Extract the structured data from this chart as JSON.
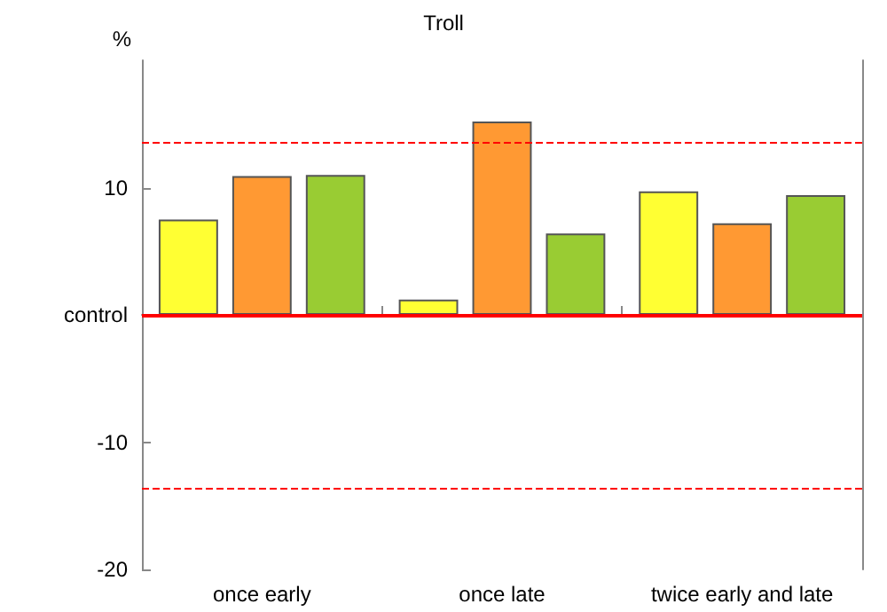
{
  "chart_data": {
    "type": "bar",
    "title": "Troll",
    "ylabel": "%",
    "categories": [
      "once early",
      "once late",
      "twice early and late"
    ],
    "series": [
      {
        "color": "#ffff33",
        "values": [
          7.5,
          1.2,
          9.7
        ]
      },
      {
        "color": "#ff9933",
        "values": [
          10.9,
          15.2,
          7.2
        ]
      },
      {
        "color": "#99cc33",
        "values": [
          11.0,
          6.4,
          9.4
        ]
      }
    ],
    "ylim": [
      -20,
      20
    ],
    "yticks": [
      -20,
      -10,
      {
        "value": 0,
        "label": "control"
      },
      10
    ],
    "ref_lines": [
      {
        "axis": "y",
        "value": 0,
        "color": "#ff0000",
        "line_style": "solid"
      },
      {
        "axis": "y",
        "value": 13.6,
        "color": "#ff0000",
        "line_style": "dashed"
      },
      {
        "axis": "y",
        "value": -13.6,
        "color": "#ff0000",
        "line_style": "dashed"
      }
    ]
  }
}
